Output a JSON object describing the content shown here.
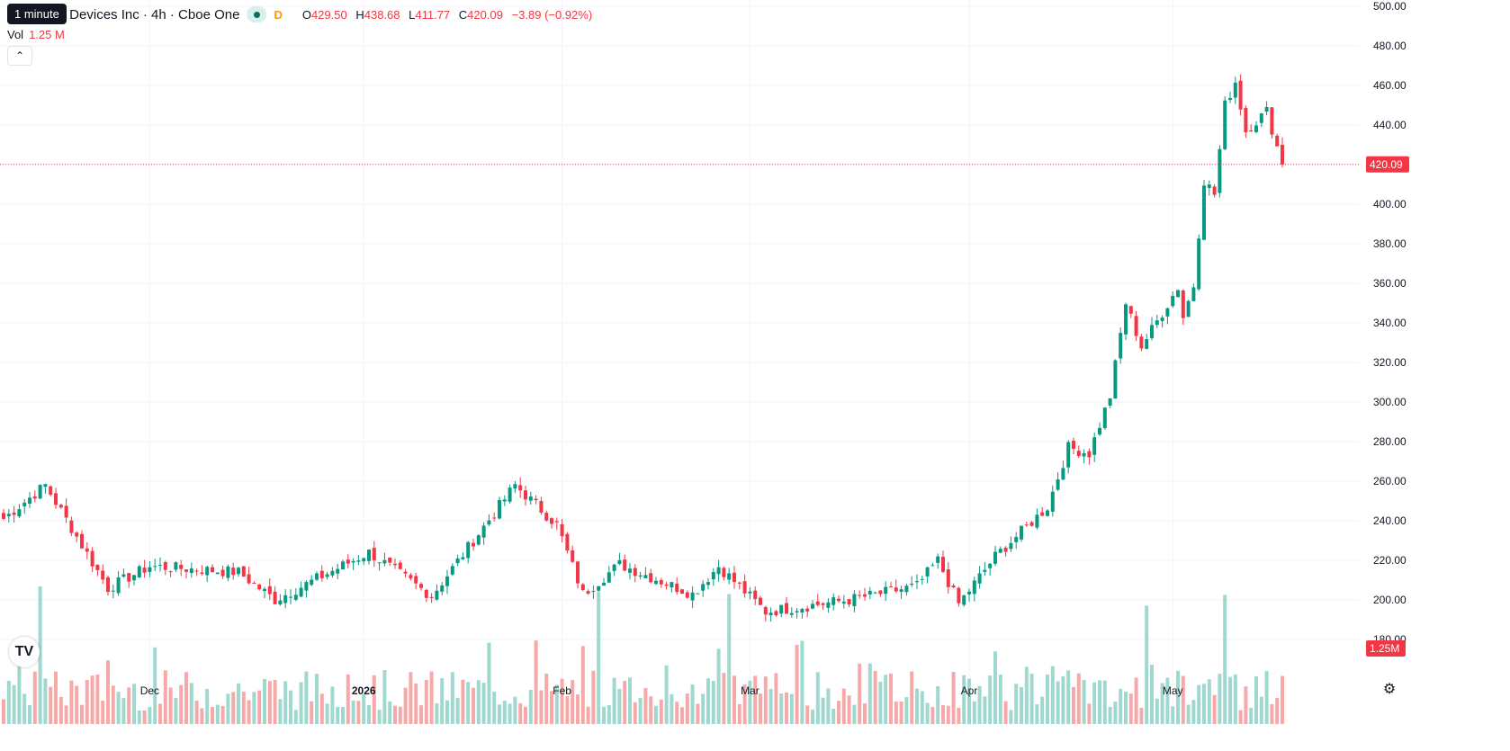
{
  "legend": {
    "title": "ced Micro Devices Inc · 4h · Cboe One",
    "delayed": "D",
    "open_label": "O",
    "open": "429.50",
    "high_label": "H",
    "high": "438.68",
    "low_label": "L",
    "low": "411.77",
    "close_label": "C",
    "close": "420.09",
    "change": "−3.89 (−0.92%)"
  },
  "tooltip": "1 minute",
  "volume_legend": {
    "label": "Vol",
    "value": "1.25 M"
  },
  "price_tag": "420.09",
  "volume_tag": "1.25M",
  "colors": {
    "up": "#089981",
    "down": "#f23645",
    "up_vol": "#9fd8cf",
    "down_vol": "#f7a9a9"
  },
  "icons": {
    "logo": "tradingview-logo-icon",
    "settings": "settings-gear-icon",
    "collapse": "chevron-up-icon"
  },
  "chart_data": {
    "type": "candlestick",
    "title": "",
    "ylim": [
      170,
      500
    ],
    "y_ticks": [
      500,
      480,
      460,
      440,
      420,
      400,
      380,
      360,
      340,
      320,
      300,
      280,
      260,
      240,
      220,
      200,
      180
    ],
    "y_tick_labels": [
      "500.00",
      "480.00",
      "460.00",
      "440.00",
      "420.00",
      "400.00",
      "380.00",
      "360.00",
      "340.00",
      "320.00",
      "300.00",
      "280.00",
      "260.00",
      "240.00",
      "220.00",
      "200.00",
      "180.00"
    ],
    "x_labels": [
      {
        "label": "Dec",
        "bar": 28,
        "bold": false
      },
      {
        "label": "2026",
        "bar": 69,
        "bold": true
      },
      {
        "label": "Feb",
        "bar": 107,
        "bold": false
      },
      {
        "label": "Mar",
        "bar": 143,
        "bold": false
      },
      {
        "label": "Apr",
        "bar": 185,
        "bold": false
      },
      {
        "label": "May",
        "bar": 224,
        "bold": false
      }
    ],
    "last_price": 420.09,
    "anchors": [
      {
        "bar": 0,
        "close": 241
      },
      {
        "bar": 8,
        "close": 258
      },
      {
        "bar": 20,
        "close": 206
      },
      {
        "bar": 28,
        "close": 217
      },
      {
        "bar": 45,
        "close": 214
      },
      {
        "bar": 52,
        "close": 200
      },
      {
        "bar": 70,
        "close": 224
      },
      {
        "bar": 82,
        "close": 202
      },
      {
        "bar": 98,
        "close": 258
      },
      {
        "bar": 106,
        "close": 238
      },
      {
        "bar": 111,
        "close": 203
      },
      {
        "bar": 118,
        "close": 218
      },
      {
        "bar": 132,
        "close": 203
      },
      {
        "bar": 137,
        "close": 217
      },
      {
        "bar": 146,
        "close": 194
      },
      {
        "bar": 162,
        "close": 200
      },
      {
        "bar": 175,
        "close": 207
      },
      {
        "bar": 179,
        "close": 220
      },
      {
        "bar": 183,
        "close": 198
      },
      {
        "bar": 190,
        "close": 222
      },
      {
        "bar": 200,
        "close": 247
      },
      {
        "bar": 204,
        "close": 277
      },
      {
        "bar": 208,
        "close": 274
      },
      {
        "bar": 212,
        "close": 303
      },
      {
        "bar": 215,
        "close": 350
      },
      {
        "bar": 218,
        "close": 328
      },
      {
        "bar": 225,
        "close": 358
      },
      {
        "bar": 226,
        "close": 343
      },
      {
        "bar": 228,
        "close": 359
      },
      {
        "bar": 230,
        "close": 412
      },
      {
        "bar": 232,
        "close": 405
      },
      {
        "bar": 234,
        "close": 450
      },
      {
        "bar": 236,
        "close": 462
      },
      {
        "bar": 238,
        "close": 437
      },
      {
        "bar": 242,
        "close": 447
      },
      {
        "bar": 244,
        "close": 429
      },
      {
        "bar": 245,
        "close": 420.09
      }
    ]
  }
}
